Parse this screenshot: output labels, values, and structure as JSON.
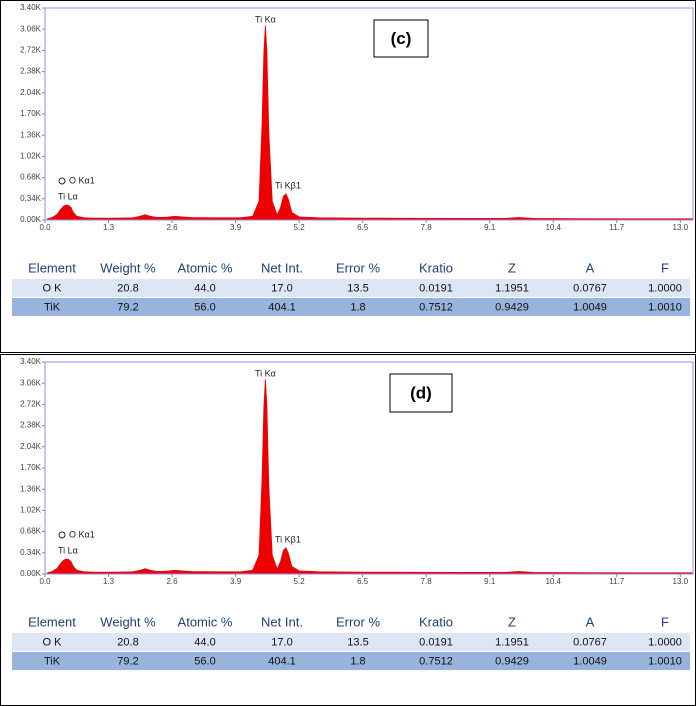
{
  "chart_data": [
    {
      "type": "area",
      "title": "(c)",
      "color": "#ee0000",
      "annotations": [
        "O Kα1",
        "Ti Lα",
        "Ti Kα",
        "Ti Kβ1"
      ],
      "x": [
        0.05,
        0.15,
        0.25,
        0.32,
        0.38,
        0.43,
        0.48,
        0.53,
        0.58,
        0.65,
        0.8,
        1.0,
        1.4,
        1.8,
        1.95,
        2.05,
        2.15,
        2.3,
        2.5,
        2.65,
        2.8,
        3.0,
        3.5,
        4.0,
        4.25,
        4.38,
        4.44,
        4.48,
        4.51,
        4.54,
        4.58,
        4.65,
        4.75,
        4.82,
        4.88,
        4.93,
        4.98,
        5.05,
        5.2,
        5.6,
        6.5,
        7.5,
        8.5,
        9.4,
        9.7,
        10.0,
        10.8,
        11.8,
        12.8,
        13.26
      ],
      "values": [
        20,
        40,
        90,
        170,
        220,
        240,
        235,
        200,
        120,
        60,
        35,
        30,
        30,
        35,
        60,
        85,
        60,
        40,
        45,
        60,
        50,
        40,
        35,
        35,
        60,
        300,
        1500,
        2700,
        3120,
        2700,
        1400,
        300,
        80,
        200,
        380,
        420,
        330,
        120,
        50,
        35,
        30,
        28,
        25,
        25,
        40,
        25,
        22,
        20,
        20,
        20
      ],
      "xlim": [
        0,
        13.26
      ],
      "ylim": [
        0,
        3400
      ],
      "xticks": [
        {
          "value": 0,
          "label": "0.0"
        },
        1.3,
        2.6,
        3.9,
        5.2,
        6.5,
        7.8,
        9.1,
        10.4,
        11.7,
        {
          "value": 13,
          "label": "13.0"
        }
      ],
      "yticks": [
        {
          "value": 0,
          "label": "0.00K"
        },
        {
          "value": 340,
          "label": "0.34K"
        },
        {
          "value": 680,
          "label": "0.68K"
        },
        {
          "value": 1020,
          "label": "1.02K"
        },
        {
          "value": 1360,
          "label": "1.36K"
        },
        {
          "value": 1700,
          "label": "1.70K"
        },
        {
          "value": 2040,
          "label": "2.04K"
        },
        {
          "value": 2380,
          "label": "2.38K"
        },
        {
          "value": 2720,
          "label": "2.72K"
        },
        {
          "value": 3060,
          "label": "3.06K"
        },
        {
          "value": 3400,
          "label": "3.40K"
        }
      ]
    },
    {
      "type": "area",
      "title": "(d)",
      "color": "#ee0000",
      "annotations": [
        "O Kα1",
        "Ti Lα",
        "Ti Kα",
        "Ti Kβ1"
      ],
      "x": [
        0.05,
        0.15,
        0.25,
        0.32,
        0.38,
        0.43,
        0.48,
        0.53,
        0.58,
        0.65,
        0.8,
        1.0,
        1.4,
        1.8,
        1.95,
        2.05,
        2.15,
        2.3,
        2.5,
        2.65,
        2.8,
        3.0,
        3.5,
        4.0,
        4.25,
        4.38,
        4.44,
        4.48,
        4.51,
        4.54,
        4.58,
        4.65,
        4.75,
        4.82,
        4.88,
        4.93,
        4.98,
        5.05,
        5.2,
        5.6,
        6.5,
        7.5,
        8.5,
        9.4,
        9.7,
        10.0,
        10.8,
        11.8,
        12.8,
        13.26
      ],
      "values": [
        20,
        40,
        90,
        170,
        220,
        240,
        235,
        200,
        120,
        60,
        35,
        30,
        30,
        35,
        60,
        85,
        60,
        40,
        45,
        60,
        50,
        40,
        35,
        35,
        60,
        300,
        1500,
        2700,
        3120,
        2700,
        1400,
        300,
        80,
        200,
        380,
        420,
        330,
        120,
        50,
        35,
        30,
        28,
        25,
        25,
        40,
        25,
        22,
        20,
        20,
        20
      ],
      "xlim": [
        0,
        13.26
      ],
      "ylim": [
        0,
        3400
      ],
      "xticks": [
        {
          "value": 0,
          "label": "0.0"
        },
        1.3,
        2.6,
        3.9,
        5.2,
        6.5,
        7.8,
        9.1,
        10.4,
        11.7,
        {
          "value": 13,
          "label": "13.0"
        }
      ],
      "yticks": [
        {
          "value": 0,
          "label": "0.00K"
        },
        {
          "value": 340,
          "label": "0.34K"
        },
        {
          "value": 680,
          "label": "0.68K"
        },
        {
          "value": 1020,
          "label": "1.02K"
        },
        {
          "value": 1360,
          "label": "1.36K"
        },
        {
          "value": 1700,
          "label": "1.70K"
        },
        {
          "value": 2040,
          "label": "2.04K"
        },
        {
          "value": 2380,
          "label": "2.38K"
        },
        {
          "value": 2720,
          "label": "2.72K"
        },
        {
          "value": 3060,
          "label": "3.06K"
        },
        {
          "value": 3400,
          "label": "3.40K"
        }
      ]
    }
  ],
  "tables": [
    {
      "columns": [
        "Element",
        "Weight %",
        "Atomic %",
        "Net Int.",
        "Error %",
        "Kratio",
        "Z",
        "A",
        "F"
      ],
      "rows": [
        [
          "O K",
          "20.8",
          "44.0",
          "17.0",
          "13.5",
          "0.0191",
          "1.1951",
          "0.0767",
          "1.0000"
        ],
        [
          "TiK",
          "79.2",
          "56.0",
          "404.1",
          "1.8",
          "0.7512",
          "0.9429",
          "1.0049",
          "1.0010"
        ]
      ]
    },
    {
      "columns": [
        "Element",
        "Weight %",
        "Atomic %",
        "Net Int.",
        "Error %",
        "Kratio",
        "Z",
        "A",
        "F"
      ],
      "rows": [
        [
          "O K",
          "20.8",
          "44.0",
          "17.0",
          "13.5",
          "0.0191",
          "1.1951",
          "0.0767",
          "1.0000"
        ],
        [
          "TiK",
          "79.2",
          "56.0",
          "404.1",
          "1.8",
          "0.7512",
          "0.9429",
          "1.0049",
          "1.0010"
        ]
      ]
    }
  ]
}
